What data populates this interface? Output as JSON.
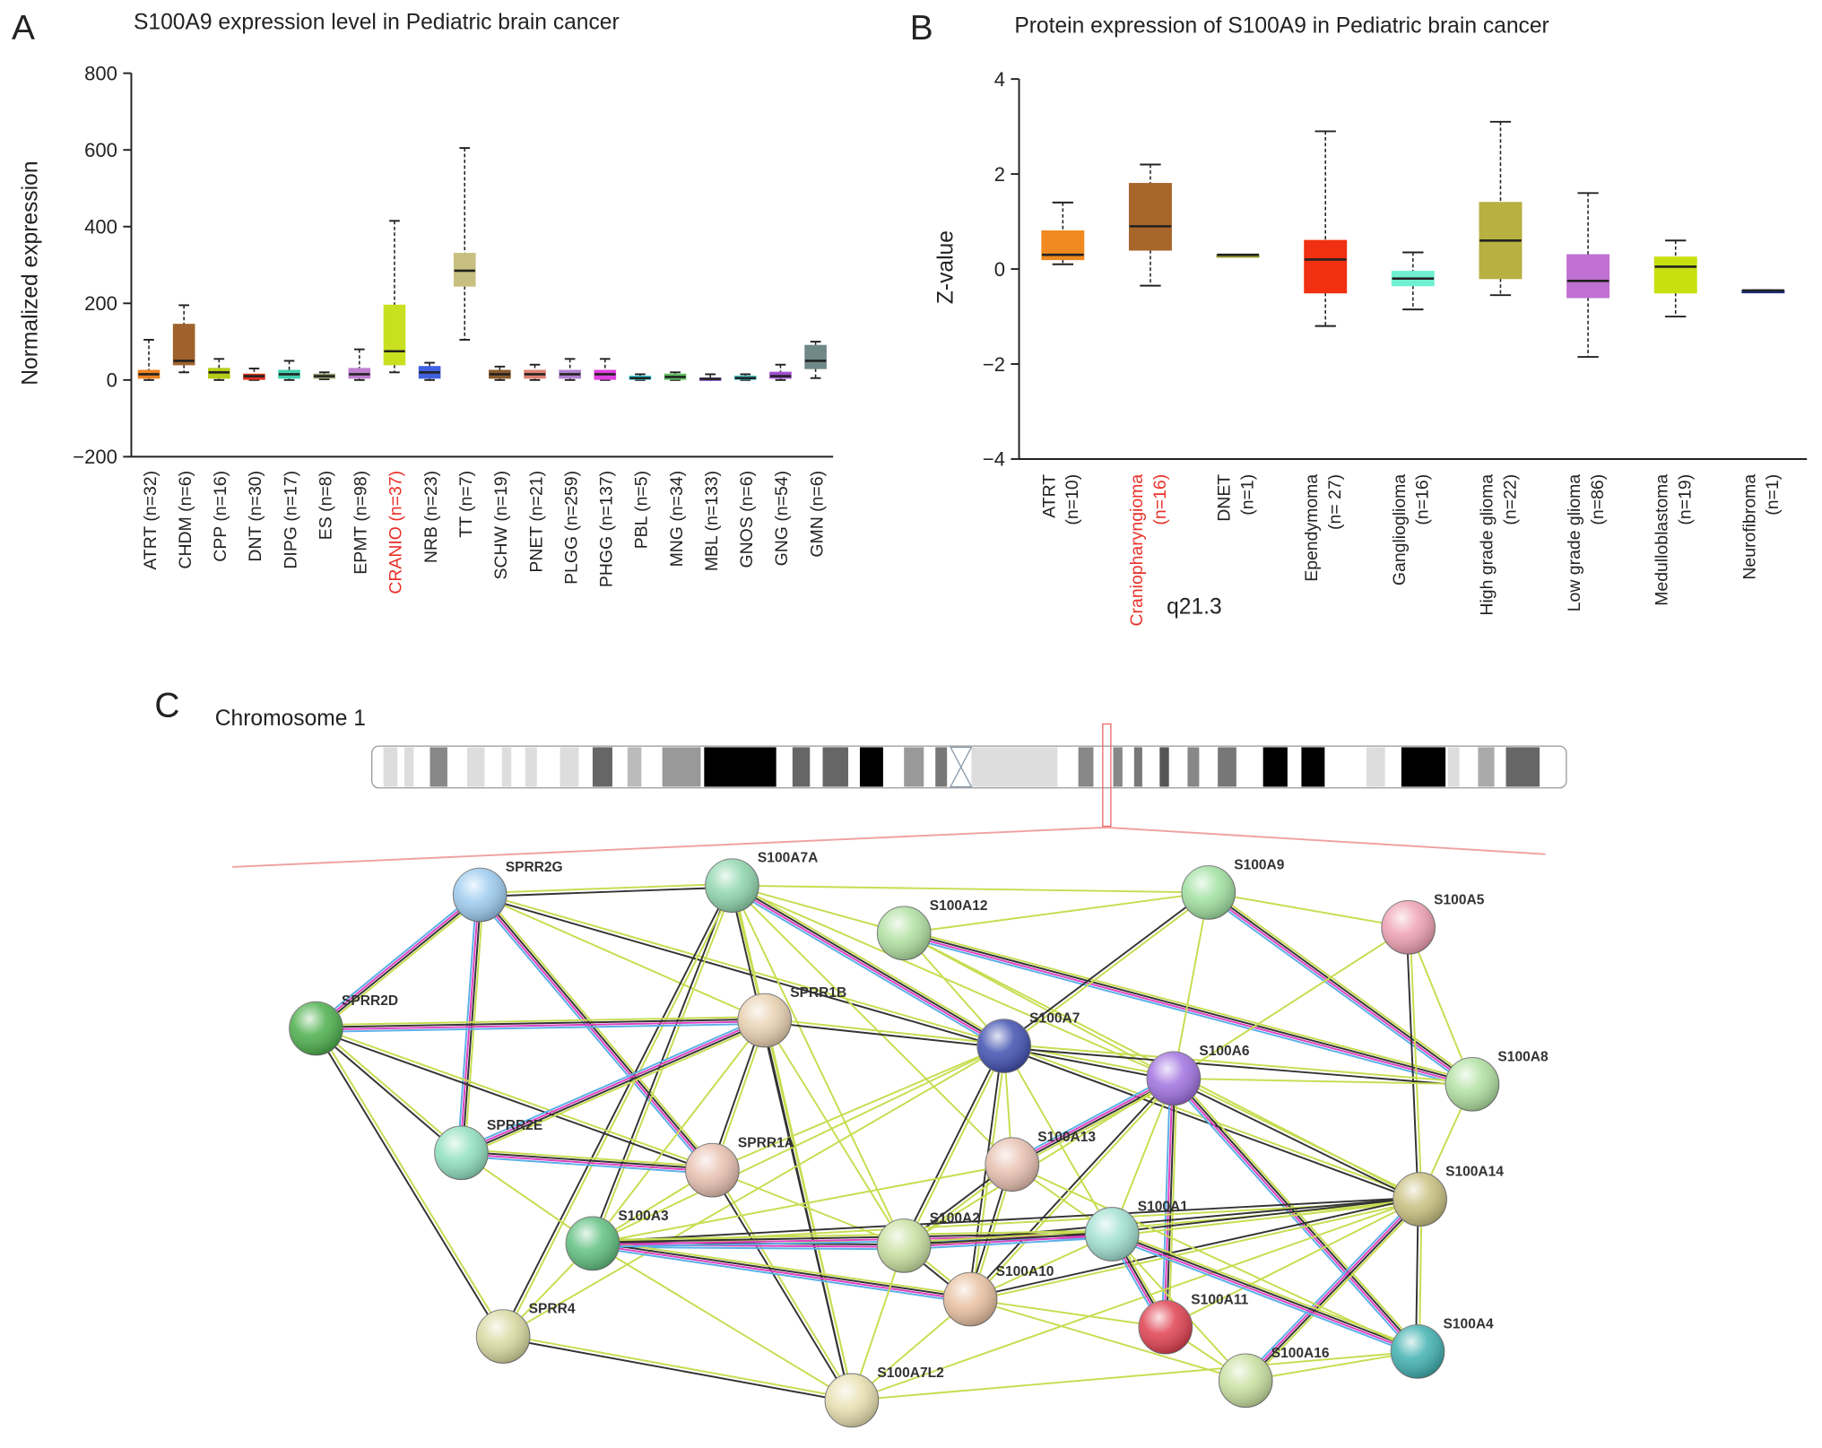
{
  "chart_data": [
    {
      "type": "box",
      "panel": "A",
      "title": "S100A9 expression level in Pediatric brain cancer",
      "ylabel": "Normalized expression",
      "categories": [
        "ATRT (n=32)",
        "CHDM (n=6)",
        "CPP (n=16)",
        "DNT (n=30)",
        "DIPG (n=17)",
        "ES (n=8)",
        "EPMT (n=98)",
        "CRANIO (n=37)",
        "NRB (n=23)",
        "TT (n=7)",
        "SCHW (n=19)",
        "PNET (n=21)",
        "PLGG (n=259)",
        "PHGG (n=137)",
        "PBL (n=5)",
        "MNG (n=34)",
        "MBL (n=133)",
        "GNOS (n=6)",
        "GNG (n=54)",
        "GMN (n=6)"
      ],
      "label_colors": [
        "#222",
        "#222",
        "#222",
        "#222",
        "#222",
        "#222",
        "#222",
        "#e8302a",
        "#222",
        "#222",
        "#222",
        "#222",
        "#222",
        "#222",
        "#222",
        "#222",
        "#222",
        "#222",
        "#222",
        "#222"
      ],
      "boxes": [
        {
          "color": "#f08020",
          "min": 0,
          "q1": 5,
          "median": 15,
          "q3": 25,
          "max": 105
        },
        {
          "color": "#a0622d",
          "min": 20,
          "q1": 40,
          "median": 50,
          "q3": 145,
          "max": 195
        },
        {
          "color": "#b5cc18",
          "min": 0,
          "q1": 5,
          "median": 20,
          "q3": 30,
          "max": 55
        },
        {
          "color": "#e03020",
          "min": 0,
          "q1": 2,
          "median": 10,
          "q3": 15,
          "max": 30
        },
        {
          "color": "#40d0b0",
          "min": 0,
          "q1": 5,
          "median": 15,
          "q3": 25,
          "max": 50
        },
        {
          "color": "#a0a070",
          "min": 2,
          "q1": 5,
          "median": 10,
          "q3": 15,
          "max": 20
        },
        {
          "color": "#c080d0",
          "min": 0,
          "q1": 5,
          "median": 15,
          "q3": 30,
          "max": 80
        },
        {
          "color": "#c8e020",
          "min": 20,
          "q1": 40,
          "median": 75,
          "q3": 195,
          "max": 415
        },
        {
          "color": "#4060e0",
          "min": 0,
          "q1": 5,
          "median": 20,
          "q3": 35,
          "max": 45
        },
        {
          "color": "#c8c080",
          "min": 105,
          "q1": 245,
          "median": 285,
          "q3": 330,
          "max": 605
        },
        {
          "color": "#8b5a2b",
          "min": 0,
          "q1": 5,
          "median": 15,
          "q3": 25,
          "max": 35
        },
        {
          "color": "#e08070",
          "min": 0,
          "q1": 5,
          "median": 15,
          "q3": 25,
          "max": 40
        },
        {
          "color": "#b080d0",
          "min": 0,
          "q1": 5,
          "median": 15,
          "q3": 25,
          "max": 55
        },
        {
          "color": "#e040e0",
          "min": 0,
          "q1": 2,
          "median": 15,
          "q3": 25,
          "max": 55
        },
        {
          "color": "#30d0e0",
          "min": 0,
          "q1": 2,
          "median": 5,
          "q3": 10,
          "max": 15
        },
        {
          "color": "#60c060",
          "min": 0,
          "q1": 2,
          "median": 8,
          "q3": 15,
          "max": 20
        },
        {
          "color": "#9060d0",
          "min": 0,
          "q1": 0,
          "median": 3,
          "q3": 5,
          "max": 15
        },
        {
          "color": "#40c0c0",
          "min": 0,
          "q1": 2,
          "median": 5,
          "q3": 10,
          "max": 15
        },
        {
          "color": "#a050d0",
          "min": 0,
          "q1": 5,
          "median": 10,
          "q3": 20,
          "max": 40
        },
        {
          "color": "#708888",
          "min": 5,
          "q1": 30,
          "median": 50,
          "q3": 90,
          "max": 100
        }
      ],
      "ylim": [
        -200,
        800
      ],
      "yticks": [
        {
          "value": -200,
          "label": "−200"
        },
        0,
        200,
        400,
        600,
        800
      ]
    },
    {
      "type": "box",
      "panel": "B",
      "title": "Protein expression of S100A9 in Pediatric brain cancer",
      "ylabel": "Z-value",
      "categories": [
        "ATRT",
        "Craniopharyngioma",
        "DNET",
        "Ependymoma",
        "Ganglioglioma",
        "High grade glioma",
        "Low grade glioma",
        "Medulloblastoma",
        "Neurofibroma"
      ],
      "n_labels": [
        "(n=10)",
        "(n=16)",
        "(n=1)",
        "(n= 27)",
        "(n=16)",
        "(n=22)",
        "(n=86)",
        "(n=19)",
        "(n=1)"
      ],
      "label_colors": [
        "#222",
        "#e8302a",
        "#222",
        "#222",
        "#222",
        "#222",
        "#222",
        "#222",
        "#222"
      ],
      "boxes": [
        {
          "color": "#f08a20",
          "min": 0.1,
          "q1": 0.2,
          "median": 0.3,
          "q3": 0.8,
          "max": 1.4
        },
        {
          "color": "#a8662a",
          "min": -0.35,
          "q1": 0.4,
          "median": 0.9,
          "q3": 1.8,
          "max": 2.2
        },
        {
          "color": "#9a9a30",
          "min": 0.3,
          "q1": 0.3,
          "median": 0.3,
          "q3": 0.3,
          "max": 0.3
        },
        {
          "color": "#f03010",
          "min": -1.2,
          "q1": -0.5,
          "median": 0.2,
          "q3": 0.6,
          "max": 2.9
        },
        {
          "color": "#70f0d0",
          "min": -0.85,
          "q1": -0.35,
          "median": -0.2,
          "q3": -0.05,
          "max": 0.35
        },
        {
          "color": "#b8b040",
          "min": -0.55,
          "q1": -0.2,
          "median": 0.6,
          "q3": 1.4,
          "max": 3.1
        },
        {
          "color": "#c070d0",
          "min": -1.85,
          "q1": -0.6,
          "median": -0.25,
          "q3": 0.3,
          "max": 1.6
        },
        {
          "color": "#c8e010",
          "min": -1.0,
          "q1": -0.5,
          "median": 0.05,
          "q3": 0.25,
          "max": 0.6
        },
        {
          "color": "#203080",
          "min": -0.45,
          "q1": -0.45,
          "median": -0.45,
          "q3": -0.45,
          "max": -0.45
        }
      ],
      "ylim": [
        -4,
        4
      ],
      "yticks": [
        {
          "value": -4,
          "label": "−4"
        },
        {
          "value": -2,
          "label": "−2"
        },
        0,
        2,
        4
      ]
    }
  ],
  "network": {
    "panel": "C",
    "chromosome": "Chromosome 1",
    "band": "q21.3",
    "nodes": [
      {
        "label": "SPRR2G",
        "color": "#9ccbef"
      },
      {
        "label": "S100A7A",
        "color": "#8fd6ad"
      },
      {
        "label": "S100A12",
        "color": "#b0e0a0"
      },
      {
        "label": "S100A9",
        "color": "#a0e0a0"
      },
      {
        "label": "S100A5",
        "color": "#efa0b2"
      },
      {
        "label": "SPRR2D",
        "color": "#4caf4c"
      },
      {
        "label": "SPRR1B",
        "color": "#e8d0b0"
      },
      {
        "label": "S100A7",
        "color": "#4050b0"
      },
      {
        "label": "S100A6",
        "color": "#a070e0"
      },
      {
        "label": "S100A8",
        "color": "#b0e0a0"
      },
      {
        "label": "SPRR2E",
        "color": "#90e0c0"
      },
      {
        "label": "SPRR1A",
        "color": "#e8c0b0"
      },
      {
        "label": "S100A13",
        "color": "#e8c0b0"
      },
      {
        "label": "S100A14",
        "color": "#c8c080"
      },
      {
        "label": "S100A3",
        "color": "#60c080"
      },
      {
        "label": "S100A2",
        "color": "#c8e0a0"
      },
      {
        "label": "S100A1",
        "color": "#a0e0d0"
      },
      {
        "label": "S100A10",
        "color": "#e8c0a0"
      },
      {
        "label": "S100A11",
        "color": "#e04050"
      },
      {
        "label": "SPRR4",
        "color": "#d8d8a0"
      },
      {
        "label": "S100A7L2",
        "color": "#e8e0b0"
      },
      {
        "label": "S100A16",
        "color": "#c8e0a0"
      },
      {
        "label": "S100A4",
        "color": "#40b0b0"
      }
    ]
  }
}
